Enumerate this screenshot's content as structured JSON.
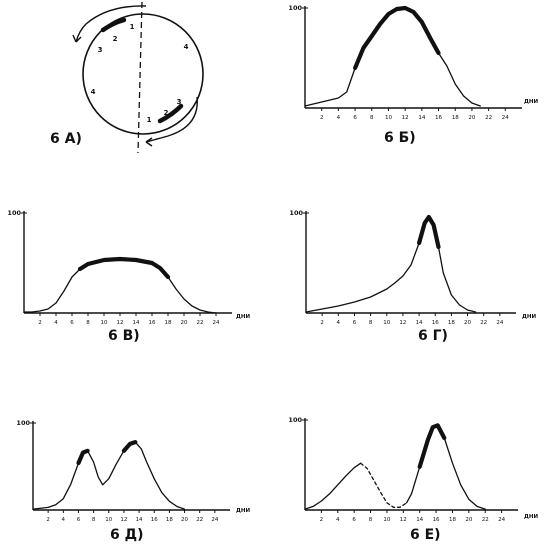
{
  "panels": [
    {
      "id": "A",
      "label": "6 А)",
      "type": "circle-diagram",
      "segment_numbers": [
        "1",
        "2",
        "3",
        "4",
        "4",
        "1",
        "2",
        "3"
      ]
    },
    {
      "id": "B",
      "label": "6 Б)",
      "type": "curve",
      "y_tick": "100",
      "x_unit": "ДНИ",
      "x_ticks": [
        "2",
        "4",
        "6",
        "8",
        "10",
        "12",
        "14",
        "16",
        "18",
        "20",
        "22",
        "24"
      ],
      "x_max": 26,
      "curves": [
        {
          "style": "solid",
          "points": [
            [
              0,
              2
            ],
            [
              1,
              4
            ],
            [
              2,
              6
            ],
            [
              3,
              8
            ],
            [
              4,
              10
            ],
            [
              5,
              16
            ],
            [
              6,
              40
            ],
            [
              7,
              60
            ],
            [
              8,
              72
            ],
            [
              9,
              84
            ],
            [
              10,
              94
            ],
            [
              11,
              99
            ],
            [
              12,
              100
            ],
            [
              13,
              96
            ],
            [
              14,
              86
            ],
            [
              15,
              70
            ],
            [
              16,
              55
            ],
            [
              17,
              42
            ],
            [
              18,
              24
            ],
            [
              19,
              12
            ],
            [
              20,
              5
            ],
            [
              21,
              2
            ]
          ],
          "emphasis": [
            [
              6,
              16
            ]
          ]
        }
      ]
    },
    {
      "id": "C",
      "label": "6 В)",
      "type": "curve",
      "y_tick": "100",
      "x_unit": "ДНИ",
      "x_ticks": [
        "2",
        "4",
        "6",
        "8",
        "10",
        "12",
        "14",
        "16",
        "18",
        "20",
        "22",
        "24"
      ],
      "x_max": 26,
      "curves": [
        {
          "style": "solid",
          "points": [
            [
              0,
              1
            ],
            [
              1,
              1
            ],
            [
              2,
              2
            ],
            [
              3,
              4
            ],
            [
              4,
              10
            ],
            [
              5,
              22
            ],
            [
              6,
              36
            ],
            [
              7,
              44
            ],
            [
              8,
              49
            ],
            [
              10,
              53
            ],
            [
              12,
              54
            ],
            [
              14,
              53
            ],
            [
              16,
              50
            ],
            [
              17,
              45
            ],
            [
              18,
              36
            ],
            [
              19,
              24
            ],
            [
              20,
              14
            ],
            [
              21,
              7
            ],
            [
              22,
              3
            ],
            [
              23,
              1
            ],
            [
              24,
              0
            ]
          ],
          "emphasis": [
            [
              7,
              18
            ]
          ]
        }
      ]
    },
    {
      "id": "D",
      "label": "6 Г)",
      "type": "curve",
      "y_tick": "100",
      "x_unit": "ДНИ",
      "x_ticks": [
        "2",
        "4",
        "6",
        "8",
        "10",
        "12",
        "14",
        "16",
        "18",
        "20",
        "22",
        "24"
      ],
      "x_max": 26,
      "curves": [
        {
          "style": "solid",
          "points": [
            [
              0,
              1
            ],
            [
              2,
              4
            ],
            [
              4,
              7
            ],
            [
              6,
              11
            ],
            [
              8,
              16
            ],
            [
              10,
              24
            ],
            [
              11,
              30
            ],
            [
              12,
              37
            ],
            [
              13,
              48
            ],
            [
              14,
              70
            ],
            [
              14.7,
              90
            ],
            [
              15.2,
              96
            ],
            [
              15.8,
              88
            ],
            [
              16.4,
              66
            ],
            [
              17,
              40
            ],
            [
              18,
              18
            ],
            [
              19,
              8
            ],
            [
              20,
              3
            ],
            [
              21,
              1
            ]
          ],
          "emphasis": [
            [
              14,
              16.5
            ]
          ]
        }
      ]
    },
    {
      "id": "E",
      "label": "6 Д)",
      "type": "curve",
      "y_tick": "100",
      "x_unit": "ДНИ",
      "x_ticks": [
        "2",
        "4",
        "6",
        "8",
        "10",
        "12",
        "14",
        "16",
        "18",
        "20",
        "22",
        "24"
      ],
      "x_max": 26,
      "curves": [
        {
          "style": "solid",
          "points": [
            [
              0,
              1
            ],
            [
              2,
              3
            ],
            [
              3,
              6
            ],
            [
              4,
              13
            ],
            [
              5,
              30
            ],
            [
              6,
              54
            ],
            [
              6.6,
              66
            ],
            [
              7.2,
              68
            ],
            [
              8,
              55
            ],
            [
              8.6,
              38
            ],
            [
              9.2,
              29
            ],
            [
              10,
              36
            ],
            [
              11,
              53
            ],
            [
              12,
              68
            ],
            [
              12.8,
              76
            ],
            [
              13.5,
              78
            ],
            [
              14.3,
              70
            ],
            [
              15,
              55
            ],
            [
              16,
              36
            ],
            [
              17,
              20
            ],
            [
              18,
              10
            ],
            [
              19,
              4
            ],
            [
              20,
              1
            ]
          ],
          "emphasis": [
            [
              5.5,
              7.5
            ],
            [
              11.5,
              14.2
            ]
          ]
        }
      ]
    },
    {
      "id": "F",
      "label": "6 Е)",
      "type": "curve",
      "y_tick": "100",
      "x_unit": "ДНИ",
      "x_ticks": [
        "2",
        "4",
        "6",
        "8",
        "10",
        "12",
        "14",
        "16",
        "18",
        "20",
        "22",
        "24"
      ],
      "x_max": 26,
      "curves": [
        {
          "style": "solid",
          "points": [
            [
              0,
              1
            ],
            [
              1,
              4
            ],
            [
              2,
              10
            ],
            [
              3,
              18
            ],
            [
              4,
              28
            ],
            [
              5,
              38
            ],
            [
              6,
              47
            ],
            [
              6.8,
              52
            ]
          ]
        },
        {
          "style": "dashed",
          "points": [
            [
              6.8,
              52
            ],
            [
              7.6,
              46
            ],
            [
              8.4,
              33
            ],
            [
              9.2,
              20
            ],
            [
              10,
              8
            ],
            [
              10.8,
              3
            ],
            [
              11.6,
              3
            ],
            [
              12.4,
              8
            ]
          ]
        },
        {
          "style": "solid",
          "points": [
            [
              12.4,
              8
            ],
            [
              13,
              18
            ],
            [
              14,
              48
            ],
            [
              15,
              78
            ],
            [
              15.6,
              92
            ],
            [
              16.2,
              94
            ],
            [
              17,
              80
            ],
            [
              18,
              52
            ],
            [
              19,
              28
            ],
            [
              20,
              12
            ],
            [
              21,
              4
            ],
            [
              22,
              1
            ]
          ],
          "emphasis": [
            [
              14,
              17.5
            ]
          ]
        }
      ]
    }
  ]
}
